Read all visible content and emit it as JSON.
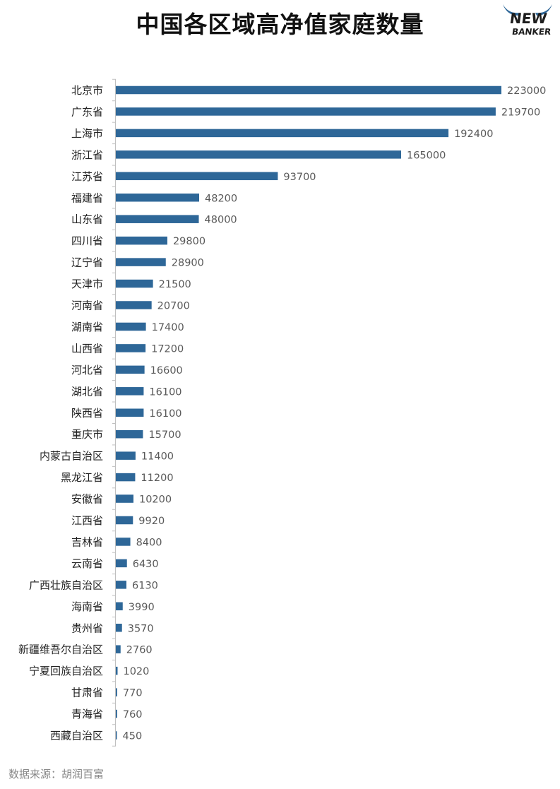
{
  "title": "中国各区域高净值家庭数量",
  "logo": {
    "line1": "NEW",
    "line2": "BANKER"
  },
  "source": "数据来源：胡润百富",
  "colors": {
    "bar": "#2e6798",
    "axis": "#bfbfbf",
    "logo_accent": "#2e6798"
  },
  "chart_data": {
    "type": "bar",
    "orientation": "horizontal",
    "title": "中国各区域高净值家庭数量",
    "xlabel": "",
    "ylabel": "",
    "grid": false,
    "legend": "none",
    "xlim": [
      0,
      223000
    ],
    "categories": [
      "北京市",
      "广东省",
      "上海市",
      "浙江省",
      "江苏省",
      "福建省",
      "山东省",
      "四川省",
      "辽宁省",
      "天津市",
      "河南省",
      "湖南省",
      "山西省",
      "河北省",
      "湖北省",
      "陕西省",
      "重庆市",
      "内蒙古自治区",
      "黑龙江省",
      "安徽省",
      "江西省",
      "吉林省",
      "云南省",
      "广西壮族自治区",
      "海南省",
      "贵州省",
      "新疆维吾尔自治区",
      "宁夏回族自治区",
      "甘肃省",
      "青海省",
      "西藏自治区"
    ],
    "values": [
      223000,
      219700,
      192400,
      165000,
      93700,
      48200,
      48000,
      29800,
      28900,
      21500,
      20700,
      17400,
      17200,
      16600,
      16100,
      16100,
      15700,
      11400,
      11200,
      10200,
      9920,
      8400,
      6430,
      6130,
      3990,
      3570,
      2760,
      1020,
      770,
      760,
      450
    ]
  }
}
